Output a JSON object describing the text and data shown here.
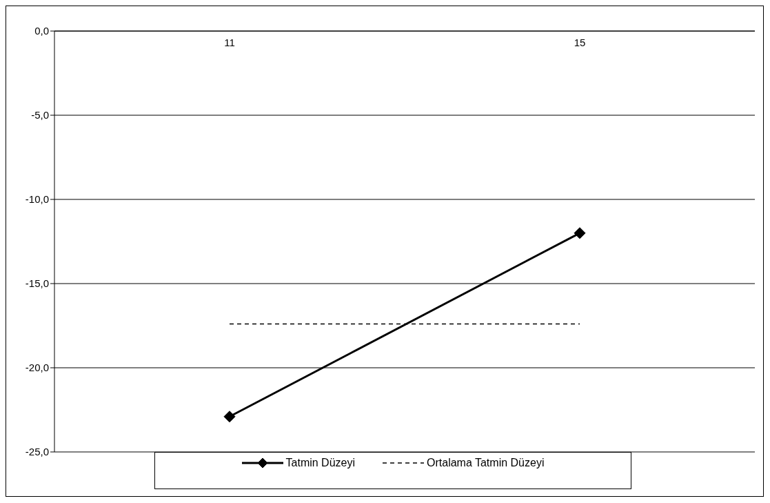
{
  "chart_data": {
    "type": "line",
    "categories": [
      "11",
      "15"
    ],
    "series": [
      {
        "name": "Tatmin Düzeyi",
        "color": "#000000",
        "values": [
          -22.9,
          -12.0
        ],
        "marker": "diamond",
        "line_style": "solid"
      },
      {
        "name": "Ortalama Tatmin Düzeyi",
        "color": "#000000",
        "values": [
          -17.4,
          -17.4
        ],
        "marker": "none",
        "line_style": "dashed"
      }
    ],
    "ylim": [
      -25,
      0
    ],
    "yticks": [
      {
        "value": 0,
        "label": "0,0"
      },
      {
        "value": -5,
        "label": "-5,0"
      },
      {
        "value": -10,
        "label": "-10,0"
      },
      {
        "value": -15,
        "label": "-15,0"
      },
      {
        "value": -20,
        "label": "-20,0"
      },
      {
        "value": -25,
        "label": "-25,0"
      }
    ],
    "grid": "y",
    "legend": "bottom"
  }
}
